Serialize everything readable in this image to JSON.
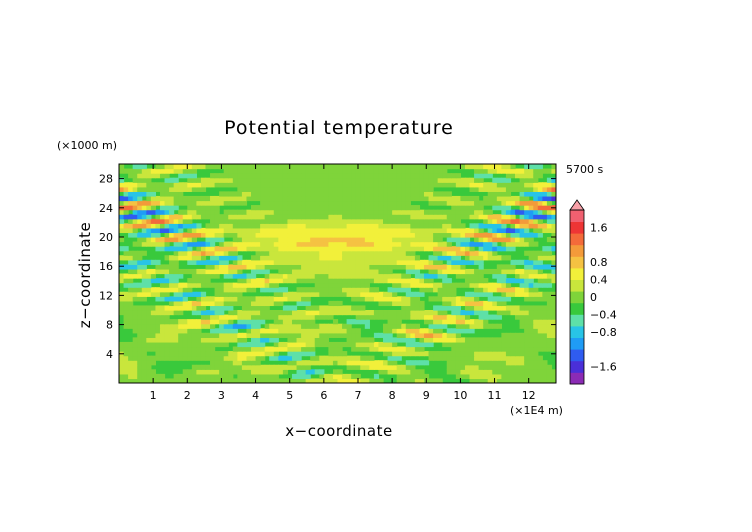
{
  "chart_data": {
    "type": "heatmap",
    "title": "Potential temperature",
    "xlabel": "x−coordinate",
    "ylabel": "z−coordinate",
    "x_unit": "(×1E4 m)",
    "y_unit": "(×1000 m)",
    "time_label": "5700 s",
    "xlim": [
      0,
      12.8
    ],
    "ylim": [
      0,
      30
    ],
    "x_ticks": [
      "1",
      "2",
      "3",
      "4",
      "5",
      "6",
      "7",
      "8",
      "9",
      "10",
      "11",
      "12"
    ],
    "x_tick_values": [
      1,
      2,
      3,
      4,
      5,
      6,
      7,
      8,
      9,
      10,
      11,
      12
    ],
    "y_ticks": [
      "4",
      "8",
      "12",
      "16",
      "20",
      "24",
      "28"
    ],
    "y_tick_values": [
      4,
      8,
      12,
      16,
      20,
      24,
      28
    ],
    "colorbar": {
      "labels": [
        "1.6",
        "0.8",
        "0.4",
        "0",
        "−0.4",
        "−0.8",
        "−1.6"
      ],
      "label_values": [
        1.6,
        0.8,
        0.4,
        0,
        -0.4,
        -0.8,
        -1.6
      ],
      "range": [
        -2.0,
        2.0
      ],
      "colors": [
        "#8b2bb5",
        "#4a2fd8",
        "#2f5cf0",
        "#1f9cf5",
        "#28c4e6",
        "#5ee0a8",
        "#39c93c",
        "#7fd43a",
        "#c9e63c",
        "#f2f03a",
        "#f5c242",
        "#f39a3a",
        "#f36a3a",
        "#ee3535",
        "#f06070"
      ]
    },
    "field": "wave pattern — wave fans radiating from a source near x=6.3, z=0 toward the upper corners; near-zero background"
  }
}
